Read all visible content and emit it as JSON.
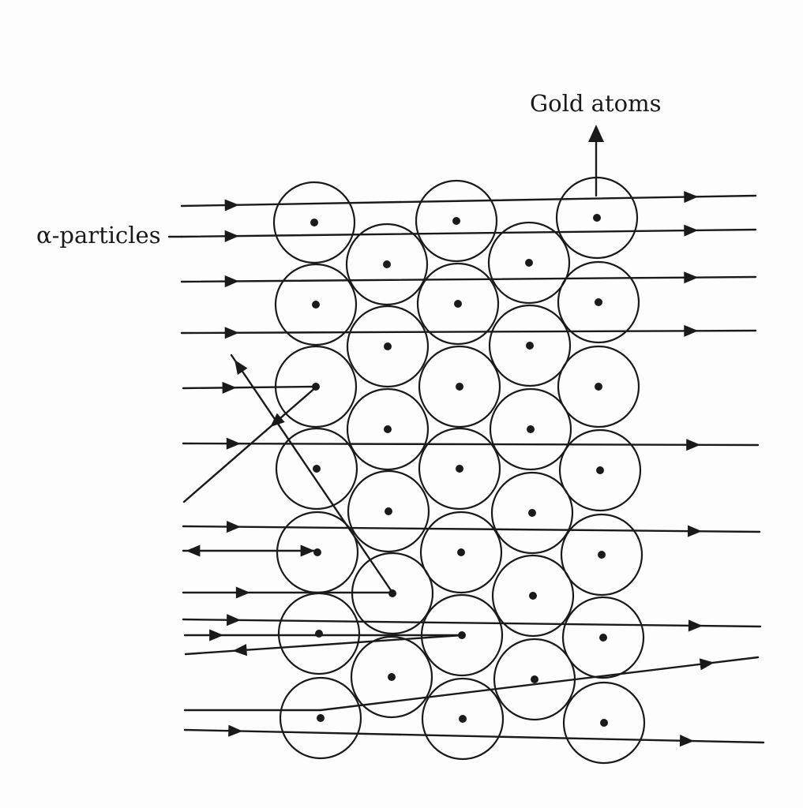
{
  "labels": {
    "gold_atoms": "Gold atoms",
    "alpha_particles": "α-particles"
  },
  "colors": {
    "ink": "#1a1a1a",
    "background": "#fdfdfd"
  }
}
